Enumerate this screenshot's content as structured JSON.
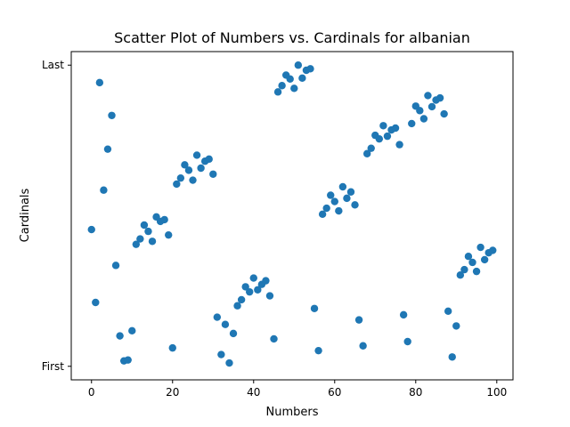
{
  "chart_data": {
    "type": "scatter",
    "title": "Scatter Plot of Numbers vs. Cardinals for albanian",
    "xlabel": "Numbers",
    "ylabel": "Cardinals",
    "xlim": [
      -5,
      104
    ],
    "ylim": [
      -0.045,
      1.045
    ],
    "xticks": [
      0,
      20,
      40,
      60,
      80,
      100
    ],
    "yticks": [
      {
        "value": 0,
        "label": "First"
      },
      {
        "value": 1,
        "label": "Last"
      }
    ],
    "grid": false,
    "legend": "none",
    "marker_color": "#1f77b4",
    "x": [
      0,
      1,
      2,
      3,
      4,
      5,
      6,
      7,
      8,
      9,
      10,
      11,
      12,
      13,
      14,
      15,
      16,
      17,
      18,
      19,
      20,
      21,
      22,
      23,
      24,
      25,
      26,
      27,
      28,
      29,
      30,
      31,
      32,
      33,
      34,
      35,
      36,
      37,
      38,
      39,
      40,
      41,
      42,
      43,
      44,
      45,
      46,
      47,
      48,
      49,
      50,
      51,
      52,
      53,
      54,
      55,
      56,
      57,
      58,
      59,
      60,
      61,
      62,
      63,
      64,
      65,
      66,
      67,
      68,
      69,
      70,
      71,
      72,
      73,
      74,
      75,
      76,
      77,
      78,
      79,
      80,
      81,
      82,
      83,
      84,
      85,
      86,
      87,
      88,
      89,
      90,
      91,
      92,
      93,
      94,
      95,
      96,
      97,
      98,
      99
    ],
    "y": [
      0.454,
      0.212,
      0.942,
      0.585,
      0.721,
      0.833,
      0.335,
      0.101,
      0.018,
      0.021,
      0.118,
      0.405,
      0.423,
      0.469,
      0.448,
      0.415,
      0.496,
      0.481,
      0.487,
      0.436,
      0.061,
      0.605,
      0.625,
      0.669,
      0.651,
      0.618,
      0.701,
      0.658,
      0.681,
      0.688,
      0.638,
      0.163,
      0.039,
      0.139,
      0.011,
      0.109,
      0.201,
      0.221,
      0.264,
      0.247,
      0.293,
      0.254,
      0.272,
      0.284,
      0.234,
      0.091,
      0.911,
      0.932,
      0.967,
      0.954,
      0.923,
      1.0,
      0.957,
      0.983,
      0.988,
      0.192,
      0.052,
      0.505,
      0.525,
      0.568,
      0.547,
      0.516,
      0.596,
      0.558,
      0.579,
      0.536,
      0.154,
      0.068,
      0.706,
      0.724,
      0.767,
      0.755,
      0.799,
      0.764,
      0.785,
      0.791,
      0.736,
      0.171,
      0.082,
      0.806,
      0.864,
      0.849,
      0.822,
      0.899,
      0.862,
      0.884,
      0.891,
      0.838,
      0.183,
      0.031,
      0.134,
      0.303,
      0.321,
      0.365,
      0.345,
      0.315,
      0.395,
      0.354,
      0.377,
      0.385
    ]
  }
}
